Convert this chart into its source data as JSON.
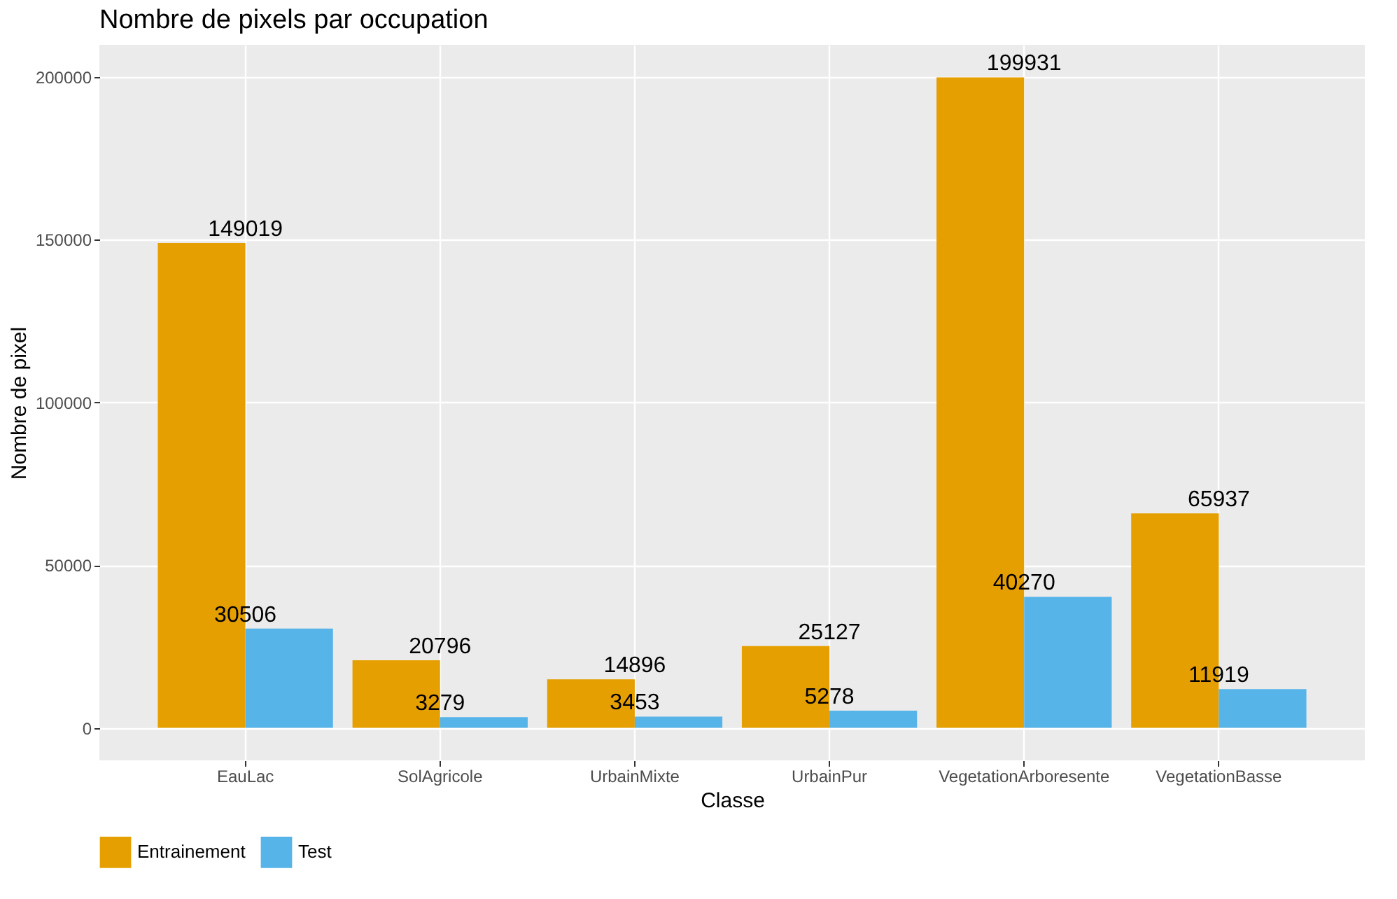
{
  "chart_data": {
    "type": "bar",
    "title": "Nombre de pixels par occupation",
    "xlabel": "Classe",
    "ylabel": "Nombre de pixel",
    "categories": [
      "EauLac",
      "SolAgricole",
      "UrbainMixte",
      "UrbainPur",
      "VegetationArboresente",
      "VegetationBasse"
    ],
    "series": [
      {
        "name": "Entrainement",
        "color": "#e69f00",
        "values": [
          149019,
          20796,
          14896,
          25127,
          199931,
          65937
        ]
      },
      {
        "name": "Test",
        "color": "#56b4e9",
        "values": [
          30506,
          3279,
          3453,
          5278,
          40270,
          11919
        ]
      }
    ],
    "ylim": [
      -9997,
      209928
    ],
    "yticks": [
      0,
      50000,
      100000,
      150000,
      200000
    ],
    "grid": true,
    "legend": "bottom",
    "data_labels": true
  }
}
